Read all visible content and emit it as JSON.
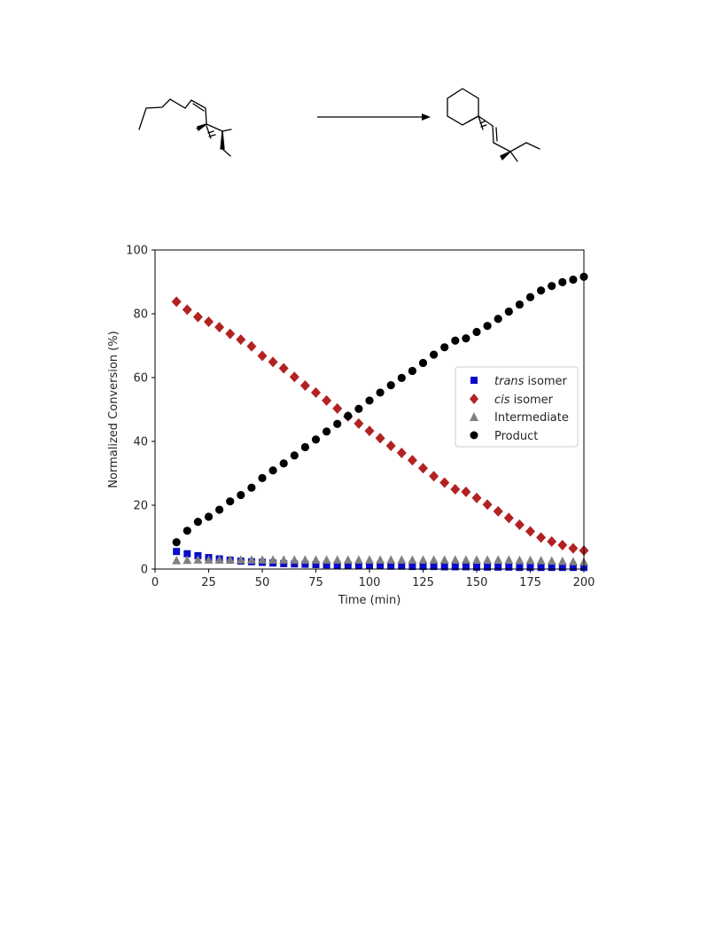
{
  "chart_data": {
    "type": "scatter",
    "title": "",
    "xlabel": "Time (min)",
    "ylabel": "Normalized Conversion (%)",
    "xlim": [
      0,
      200
    ],
    "ylim": [
      0,
      100
    ],
    "xticks": [
      0,
      25,
      50,
      75,
      100,
      125,
      150,
      175,
      200
    ],
    "yticks": [
      0,
      20,
      40,
      60,
      80,
      100
    ],
    "grid": false,
    "legend_position": "right",
    "x": [
      10,
      15,
      20,
      25,
      30,
      35,
      40,
      45,
      50,
      55,
      60,
      65,
      70,
      75,
      80,
      85,
      90,
      95,
      100,
      105,
      110,
      115,
      120,
      125,
      130,
      135,
      140,
      145,
      150,
      155,
      160,
      165,
      170,
      175,
      180,
      185,
      190,
      195,
      200
    ],
    "series": [
      {
        "name_prefix": "trans",
        "name_suffix": " isomer",
        "marker": "square",
        "color": "#0a0ac8",
        "values": [
          5.5,
          4.8,
          4.2,
          3.6,
          3.2,
          2.8,
          2.5,
          2.3,
          2.1,
          1.9,
          1.7,
          1.6,
          1.5,
          1.4,
          1.3,
          1.2,
          1.2,
          1.1,
          1.0,
          1.0,
          0.9,
          0.9,
          0.8,
          0.8,
          0.8,
          0.7,
          0.7,
          0.7,
          0.6,
          0.6,
          0.6,
          0.6,
          0.5,
          0.5,
          0.5,
          0.5,
          0.5,
          0.5,
          0.5
        ]
      },
      {
        "name_prefix": "cis",
        "name_suffix": " isomer",
        "marker": "diamond",
        "color": "#b22222",
        "values": [
          83.8,
          81.3,
          79.0,
          77.5,
          75.8,
          73.7,
          71.9,
          69.8,
          66.8,
          64.9,
          62.9,
          60.2,
          57.5,
          55.3,
          52.8,
          50.3,
          47.8,
          45.6,
          43.3,
          41.0,
          38.6,
          36.4,
          34.1,
          31.6,
          29.1,
          27.1,
          25.0,
          24.2,
          22.3,
          20.2,
          18.1,
          16.0,
          13.9,
          11.8,
          9.9,
          8.6,
          7.5,
          6.5,
          5.8
        ]
      },
      {
        "name": "Intermediate",
        "marker": "triangle",
        "color": "#808080",
        "values": [
          2.6,
          2.7,
          2.8,
          2.8,
          2.8,
          2.8,
          2.8,
          2.8,
          2.8,
          2.8,
          2.8,
          2.8,
          2.8,
          2.8,
          2.8,
          2.8,
          2.8,
          2.8,
          2.8,
          2.8,
          2.8,
          2.8,
          2.8,
          2.8,
          2.8,
          2.8,
          2.8,
          2.8,
          2.8,
          2.8,
          2.8,
          2.8,
          2.7,
          2.7,
          2.6,
          2.5,
          2.4,
          2.3,
          2.2
        ]
      },
      {
        "name": "Product",
        "marker": "circle",
        "color": "#000000",
        "values": [
          8.4,
          12.0,
          14.8,
          16.4,
          18.6,
          21.2,
          23.2,
          25.5,
          28.5,
          30.9,
          33.1,
          35.6,
          38.2,
          40.6,
          43.1,
          45.5,
          48.0,
          50.2,
          52.8,
          55.3,
          57.6,
          59.9,
          62.1,
          64.6,
          67.2,
          69.5,
          71.6,
          72.3,
          74.3,
          76.2,
          78.4,
          80.7,
          82.9,
          85.2,
          87.3,
          88.7,
          89.9,
          90.7,
          91.6
        ]
      }
    ]
  }
}
